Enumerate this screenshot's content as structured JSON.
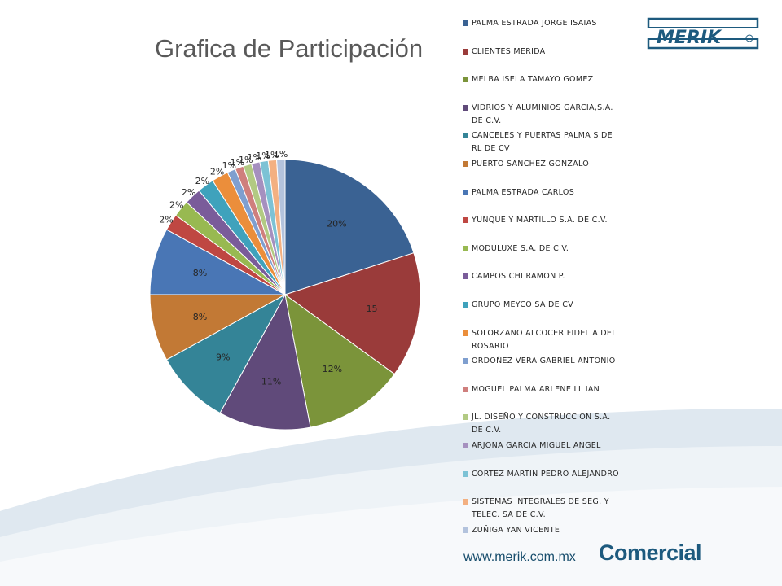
{
  "slide": {
    "title": "Grafica de Participación",
    "website": "www.merik.com.mx",
    "footer_brand": "Comercial",
    "logo_text": "MERIK",
    "colors": {
      "brand_blue": "#1d5a7e",
      "title_gray": "#595959",
      "swoosh": "#dfe8f0"
    }
  },
  "chart_data": {
    "type": "pie",
    "title": "",
    "legend_position": "right",
    "slices": [
      {
        "label": "PALMA ESTRADA JORGE ISAIAS",
        "value": 20,
        "display": "20%",
        "color": "#3a6293"
      },
      {
        "label": "CLIENTES MERIDA",
        "value": 15,
        "display": "15",
        "color": "#9a3b3a"
      },
      {
        "label": "MELBA ISELA TAMAYO GOMEZ",
        "value": 12,
        "display": "12%",
        "color": "#7b943a"
      },
      {
        "label": "VIDRIOS Y ALUMINIOS GARCIA,S.A. DE C.V.",
        "value": 11,
        "display": "11%",
        "color": "#604a7a"
      },
      {
        "label": "CANCELES Y PUERTAS PALMA S DE RL DE CV",
        "value": 9,
        "display": "9%",
        "color": "#348497"
      },
      {
        "label": "PUERTO SANCHEZ GONZALO",
        "value": 8,
        "display": "8%",
        "color": "#c27935"
      },
      {
        "label": "PALMA ESTRADA CARLOS",
        "value": 8,
        "display": "8%",
        "color": "#4976b5"
      },
      {
        "label": "YUNQUE Y MARTILLO S.A. DE C.V.",
        "value": 2,
        "display": "2%",
        "color": "#bf4742"
      },
      {
        "label": "MODULUXE S.A. DE C.V.",
        "value": 2,
        "display": "2%",
        "color": "#98b951"
      },
      {
        "label": "CAMPOS CHI RAMON P.",
        "value": 2,
        "display": "2%",
        "color": "#7a5c9a"
      },
      {
        "label": "GRUPO MEYCO SA DE CV",
        "value": 2,
        "display": "2%",
        "color": "#3fa2bc"
      },
      {
        "label": "SOLORZANO ALCOCER FIDELIA DEL ROSARIO",
        "value": 2,
        "display": "2%",
        "color": "#eb8e3b"
      },
      {
        "label": "ORDOÑEZ VERA GABRIEL ANTONIO",
        "value": 1,
        "display": "1%",
        "color": "#7f9fcf"
      },
      {
        "label": "MOGUEL PALMA ARLENE LILIAN",
        "value": 1,
        "display": "1%",
        "color": "#cf7f7d"
      },
      {
        "label": "JL. DISEÑO Y CONSTRUCCION S.A. DE C.V.",
        "value": 1,
        "display": "1%",
        "color": "#b2ca83"
      },
      {
        "label": "ARJONA GARCIA MIGUEL ANGEL",
        "value": 1,
        "display": "1%",
        "color": "#a590bf"
      },
      {
        "label": "CORTEZ MARTIN PEDRO ALEJANDRO",
        "value": 1,
        "display": "1%",
        "color": "#7cc2d5"
      },
      {
        "label": "SISTEMAS INTEGRALES DE SEG. Y TELEC. SA DE C.V.",
        "value": 1,
        "display": "1%",
        "color": "#f3b081"
      },
      {
        "label": "ZUÑIGA YAN VICENTE",
        "value": 1,
        "display": "1%",
        "color": "#b3c3dd"
      }
    ]
  }
}
